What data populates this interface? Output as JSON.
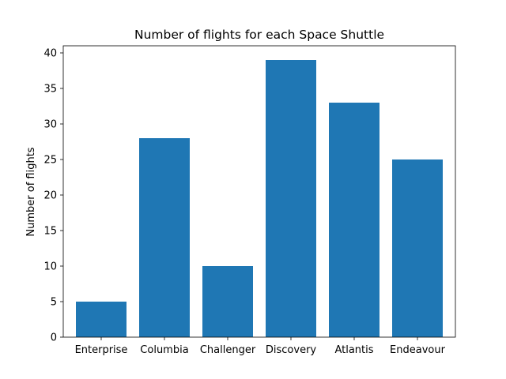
{
  "chart_data": {
    "type": "bar",
    "title": "Number of flights for each Space Shuttle",
    "xlabel": "",
    "ylabel": "Number of flights",
    "categories": [
      "Enterprise",
      "Columbia",
      "Challenger",
      "Discovery",
      "Atlantis",
      "Endeavour"
    ],
    "values": [
      5,
      28,
      10,
      39,
      33,
      25
    ],
    "ylim": [
      0,
      41
    ],
    "yticks": [
      0,
      5,
      10,
      15,
      20,
      25,
      30,
      35,
      40
    ],
    "bar_color": "#1f77b4",
    "grid": false,
    "legend": "none"
  }
}
